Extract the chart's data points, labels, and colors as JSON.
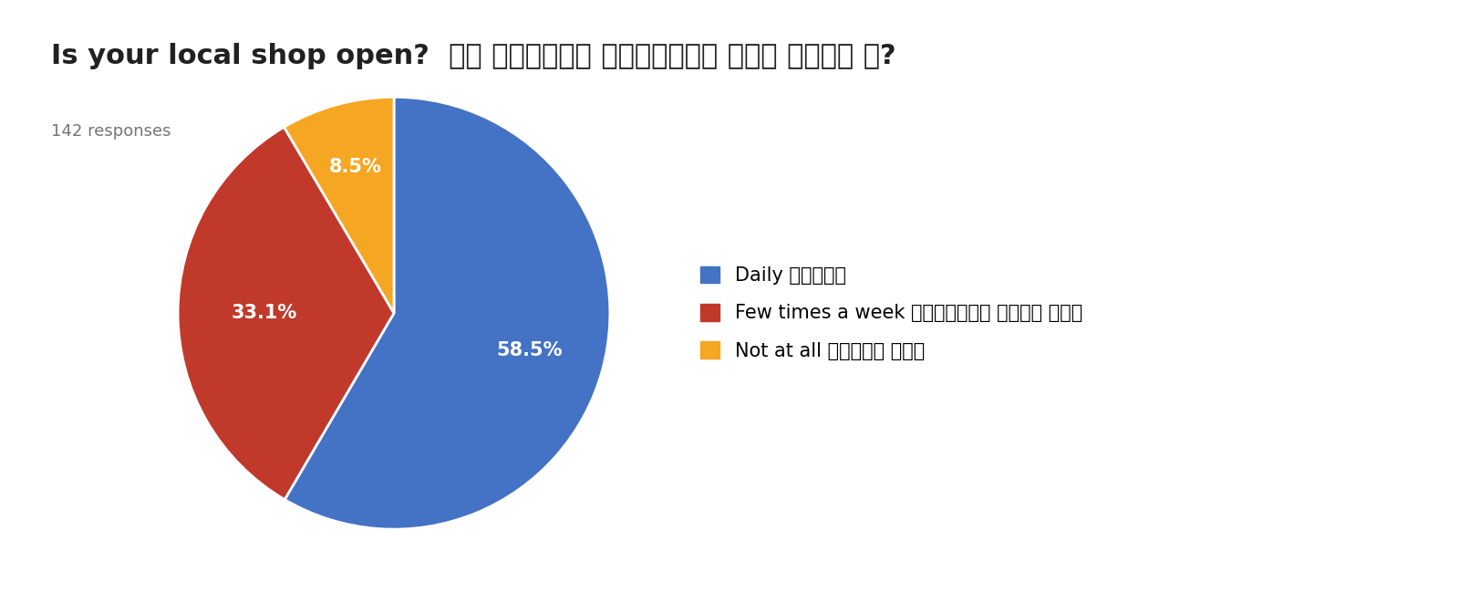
{
  "title": "Is your local shop open?  के तपाईको स्थानीय पसल खुला छ?",
  "subtitle": "142 responses",
  "slices": [
    58.5,
    33.1,
    8.5
  ],
  "labels": [
    "58.5%",
    "33.1%",
    "8.5%"
  ],
  "colors": [
    "#4472C4",
    "#C0392B",
    "#F5A623"
  ],
  "legend_labels": [
    "Daily दैनिक",
    "Few times a week हफ्तामा केही पटक",
    "Not at all पटककै छैन"
  ],
  "legend_colors": [
    "#4472C4",
    "#C0392B",
    "#F5A623"
  ],
  "start_angle": 90,
  "background_color": "#FFFFFF",
  "title_fontsize": 22,
  "subtitle_fontsize": 13,
  "label_fontsize": 15,
  "legend_fontsize": 15
}
